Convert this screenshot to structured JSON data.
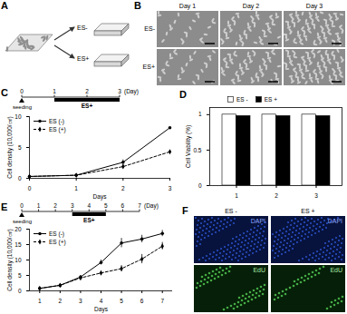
{
  "figure": {
    "A": {
      "label": "A",
      "groups": [
        "ES-",
        "ES+"
      ]
    },
    "B": {
      "label": "B",
      "columns": [
        "Day 1",
        "Day 2",
        "Day 3"
      ],
      "rows": [
        "ES-",
        "ES+"
      ]
    },
    "C": {
      "label": "C",
      "timeline": {
        "ticks": [
          0,
          1,
          2,
          3
        ],
        "unit": "(Day)",
        "start": "seeding",
        "stimulus": {
          "label": "ES+",
          "from": 1,
          "to": 3
        }
      }
    },
    "D": {
      "label": "D"
    },
    "E": {
      "label": "E",
      "timeline": {
        "ticks": [
          0,
          1,
          2,
          3,
          4,
          5,
          6,
          7
        ],
        "unit": "(Day)",
        "start": "seeding",
        "stimulus": {
          "label": "ES+",
          "from": 3,
          "to": 5
        }
      }
    },
    "F": {
      "label": "F",
      "columns": [
        "ES -",
        "ES +"
      ],
      "rows": [
        "DAPI",
        "EdU"
      ]
    }
  },
  "chart_data": [
    {
      "type": "line",
      "xlabel": "Days",
      "ylabel": "Cell density (10,000/㎠)",
      "x": [
        0,
        1,
        2,
        3
      ],
      "xlim": [
        0,
        3
      ],
      "xticks": [
        0,
        1,
        2,
        3
      ],
      "ylim": [
        0,
        10
      ],
      "yticks": [
        0,
        5,
        10
      ],
      "legend": "upper left",
      "series": [
        {
          "name": "ES (-)",
          "color": "#000000",
          "line_style": "solid",
          "marker": "circle",
          "values": [
            0.3,
            0.5,
            2.6,
            8.2
          ],
          "errors": [
            0.05,
            0.1,
            0.4,
            1.0
          ]
        },
        {
          "name": "ES (+)",
          "color": "#000000",
          "line_style": "dashed",
          "marker": "diamond",
          "values": [
            0.3,
            0.5,
            1.9,
            4.3
          ],
          "errors": [
            0.05,
            0.1,
            0.3,
            0.5
          ]
        }
      ]
    },
    {
      "type": "bar",
      "ylabel": "Cell Viability (%)",
      "categories": [
        "1",
        "2",
        "3"
      ],
      "ylim": [
        0,
        1.1
      ],
      "yticks": [
        0,
        0.5,
        1
      ],
      "legend": "top",
      "series": [
        {
          "name": "ES -",
          "color": "#ffffff",
          "values": [
            1,
            1,
            1
          ]
        },
        {
          "name": "ES +",
          "color": "#000000",
          "values": [
            0.98,
            0.98,
            0.98
          ]
        }
      ]
    },
    {
      "type": "line",
      "xlabel": "Days",
      "ylabel": "Cell density (10,000/㎠)",
      "x": [
        1,
        2,
        3,
        4,
        5,
        6,
        7
      ],
      "xlim": [
        0.5,
        7.5
      ],
      "xticks": [
        1,
        2,
        3,
        4,
        5,
        6,
        7
      ],
      "ylim": [
        0,
        20
      ],
      "yticks": [
        0,
        5,
        10,
        15,
        20
      ],
      "legend": "upper left",
      "series": [
        {
          "name": "ES (-)",
          "color": "#000000",
          "line_style": "solid",
          "marker": "circle",
          "values": [
            0.8,
            1.8,
            4.5,
            9.2,
            15.5,
            16.8,
            18.6
          ],
          "errors": [
            0.1,
            0.2,
            0.5,
            0.8,
            1.5,
            1.2,
            1.0
          ]
        },
        {
          "name": "ES (+)",
          "color": "#000000",
          "line_style": "dashed",
          "marker": "diamond",
          "values": [
            0.8,
            1.8,
            4.2,
            5.8,
            7.2,
            10.3,
            14.5
          ],
          "errors": [
            0.1,
            0.2,
            0.4,
            0.6,
            1.0,
            1.5,
            1.2
          ]
        }
      ]
    }
  ]
}
